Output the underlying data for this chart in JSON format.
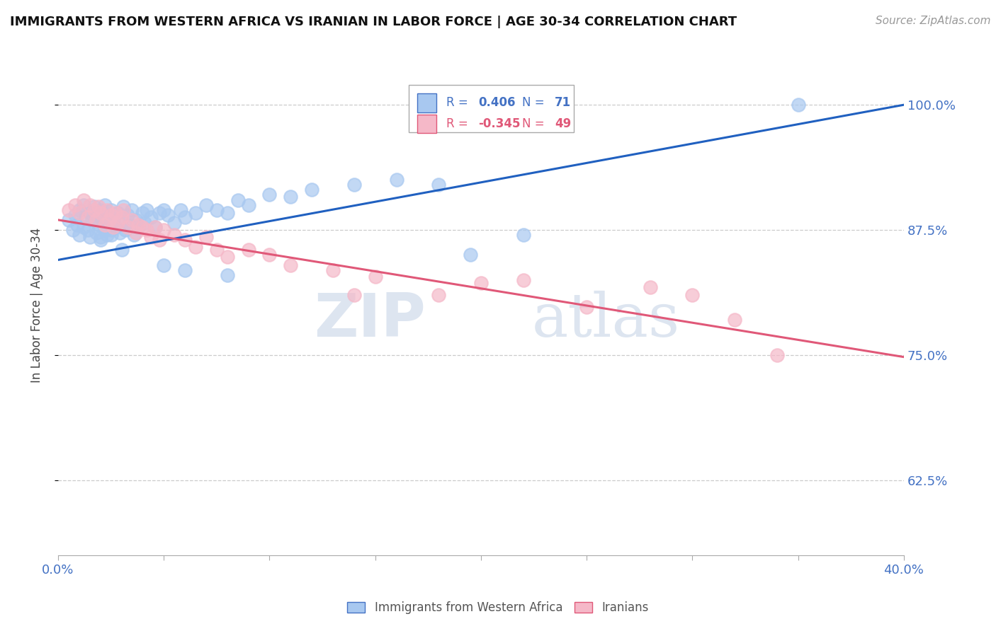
{
  "title": "IMMIGRANTS FROM WESTERN AFRICA VS IRANIAN IN LABOR FORCE | AGE 30-34 CORRELATION CHART",
  "source": "Source: ZipAtlas.com",
  "ylabel": "In Labor Force | Age 30-34",
  "xlim": [
    0.0,
    0.4
  ],
  "ylim": [
    0.55,
    1.05
  ],
  "xticks": [
    0.0,
    0.05,
    0.1,
    0.15,
    0.2,
    0.25,
    0.3,
    0.35,
    0.4
  ],
  "ytick_positions": [
    0.625,
    0.75,
    0.875,
    1.0
  ],
  "ytick_labels": [
    "62.5%",
    "75.0%",
    "87.5%",
    "100.0%"
  ],
  "blue_R": 0.406,
  "blue_N": 71,
  "pink_R": -0.345,
  "pink_N": 49,
  "blue_color": "#a8c8f0",
  "pink_color": "#f5b8c8",
  "blue_line_color": "#2060c0",
  "pink_line_color": "#e05878",
  "watermark_zip": "ZIP",
  "watermark_atlas": "atlas",
  "watermark_color": "#dde5f0",
  "legend_label_blue": "Immigrants from Western Africa",
  "legend_label_pink": "Iranians",
  "blue_line_x0": 0.0,
  "blue_line_y0": 0.845,
  "blue_line_x1": 0.4,
  "blue_line_y1": 1.0,
  "pink_line_x0": 0.0,
  "pink_line_y0": 0.885,
  "pink_line_x1": 0.4,
  "pink_line_y1": 0.748,
  "blue_scatter_x": [
    0.005,
    0.007,
    0.008,
    0.009,
    0.01,
    0.01,
    0.012,
    0.012,
    0.013,
    0.014,
    0.015,
    0.015,
    0.016,
    0.017,
    0.018,
    0.018,
    0.019,
    0.02,
    0.02,
    0.021,
    0.022,
    0.022,
    0.023,
    0.024,
    0.025,
    0.025,
    0.026,
    0.027,
    0.028,
    0.029,
    0.03,
    0.031,
    0.032,
    0.033,
    0.034,
    0.035,
    0.036,
    0.037,
    0.038,
    0.04,
    0.041,
    0.042,
    0.044,
    0.046,
    0.048,
    0.05,
    0.052,
    0.055,
    0.058,
    0.06,
    0.065,
    0.07,
    0.075,
    0.08,
    0.085,
    0.09,
    0.1,
    0.11,
    0.12,
    0.14,
    0.16,
    0.18,
    0.195,
    0.22,
    0.06,
    0.08,
    0.05,
    0.03,
    0.025,
    0.02,
    0.35
  ],
  "blue_scatter_y": [
    0.885,
    0.875,
    0.89,
    0.88,
    0.895,
    0.87,
    0.9,
    0.878,
    0.888,
    0.875,
    0.892,
    0.868,
    0.885,
    0.898,
    0.872,
    0.89,
    0.88,
    0.895,
    0.868,
    0.885,
    0.875,
    0.9,
    0.87,
    0.888,
    0.895,
    0.875,
    0.885,
    0.878,
    0.892,
    0.872,
    0.888,
    0.898,
    0.875,
    0.89,
    0.88,
    0.895,
    0.87,
    0.885,
    0.878,
    0.892,
    0.882,
    0.895,
    0.888,
    0.878,
    0.892,
    0.895,
    0.89,
    0.882,
    0.895,
    0.888,
    0.892,
    0.9,
    0.895,
    0.892,
    0.905,
    0.9,
    0.91,
    0.908,
    0.915,
    0.92,
    0.925,
    0.92,
    0.85,
    0.87,
    0.835,
    0.83,
    0.84,
    0.855,
    0.87,
    0.865,
    1.0
  ],
  "pink_scatter_x": [
    0.005,
    0.008,
    0.01,
    0.012,
    0.014,
    0.015,
    0.017,
    0.018,
    0.019,
    0.02,
    0.022,
    0.023,
    0.024,
    0.025,
    0.026,
    0.027,
    0.028,
    0.03,
    0.031,
    0.033,
    0.035,
    0.037,
    0.038,
    0.04,
    0.042,
    0.044,
    0.046,
    0.048,
    0.05,
    0.055,
    0.06,
    0.065,
    0.07,
    0.075,
    0.08,
    0.09,
    0.1,
    0.11,
    0.13,
    0.15,
    0.2,
    0.22,
    0.28,
    0.3,
    0.14,
    0.18,
    0.25,
    0.32,
    0.34
  ],
  "pink_scatter_y": [
    0.895,
    0.9,
    0.892,
    0.905,
    0.888,
    0.9,
    0.895,
    0.885,
    0.898,
    0.892,
    0.88,
    0.895,
    0.885,
    0.89,
    0.878,
    0.892,
    0.882,
    0.888,
    0.895,
    0.878,
    0.885,
    0.872,
    0.88,
    0.878,
    0.875,
    0.868,
    0.878,
    0.865,
    0.875,
    0.87,
    0.865,
    0.858,
    0.868,
    0.855,
    0.848,
    0.855,
    0.85,
    0.84,
    0.835,
    0.828,
    0.822,
    0.825,
    0.818,
    0.81,
    0.81,
    0.81,
    0.798,
    0.785,
    0.75
  ]
}
